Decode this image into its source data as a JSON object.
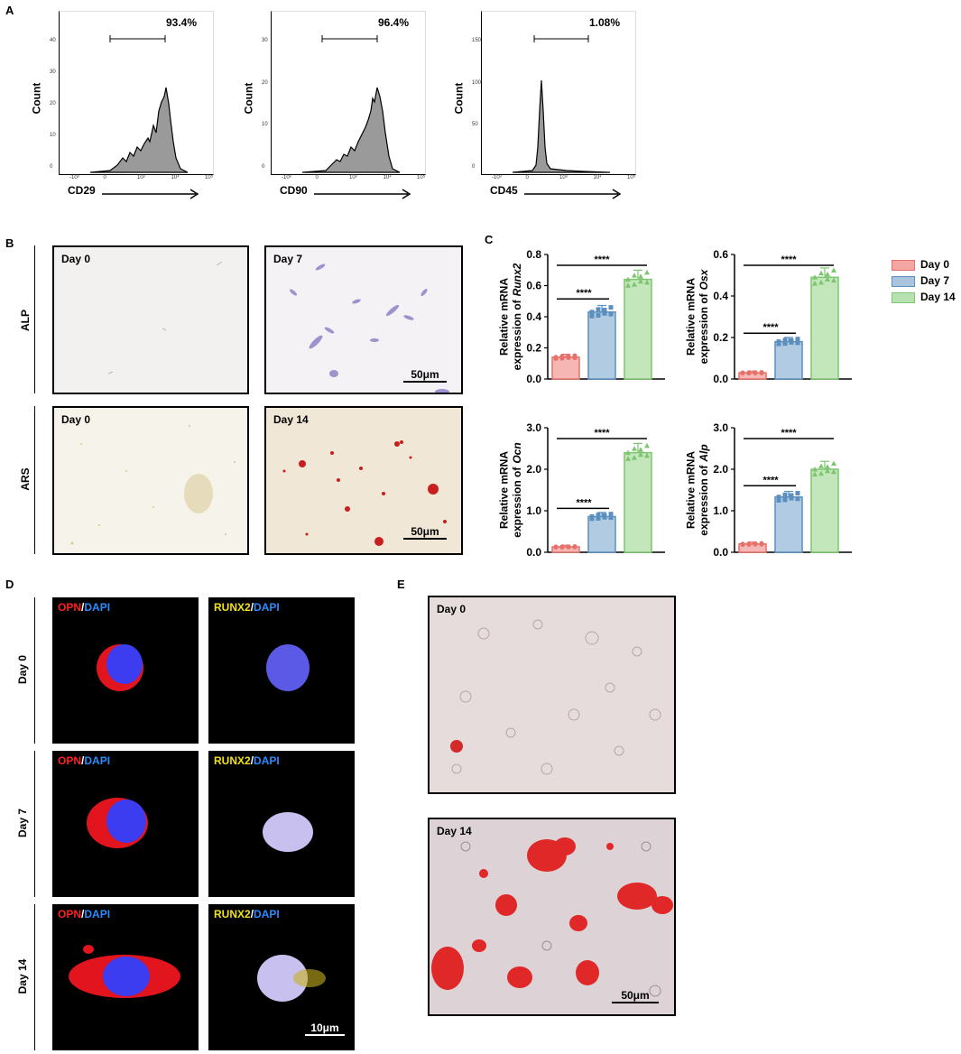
{
  "panel_labels": {
    "a": "A",
    "b": "B",
    "c": "C",
    "d": "D",
    "e": "E"
  },
  "facs": [
    {
      "marker": "CD29",
      "percent": "93.4%",
      "ylabel": "Count",
      "yticks": [
        "0",
        "10",
        "20",
        "30",
        "40"
      ],
      "xticks": [
        "-10³",
        "0",
        "10³",
        "10⁴",
        "10⁵"
      ]
    },
    {
      "marker": "CD90",
      "percent": "96.4%",
      "ylabel": "Count",
      "yticks": [
        "0",
        "10",
        "20",
        "30"
      ],
      "xticks": [
        "-10³",
        "0",
        "10³",
        "10⁴",
        "10⁵"
      ]
    },
    {
      "marker": "CD45",
      "percent": "1.08%",
      "ylabel": "Count",
      "yticks": [
        "0",
        "50",
        "100",
        "150"
      ],
      "xticks": [
        "-10³",
        "0",
        "10³",
        "10⁴",
        "10⁵"
      ]
    }
  ],
  "panel_b": {
    "rows": [
      "ALP",
      "ARS"
    ],
    "images": [
      {
        "label": "Day 0"
      },
      {
        "label": "Day 7",
        "scale": "50μm"
      },
      {
        "label": "Day 0"
      },
      {
        "label": "Day 14",
        "scale": "50μm"
      }
    ]
  },
  "panel_c_legend": [
    {
      "label": "Day 0",
      "color": "#f4a6a3"
    },
    {
      "label": "Day 7",
      "color": "#a9c4dc"
    },
    {
      "label": "Day 14",
      "color": "#b8e0b0"
    }
  ],
  "panel_c_sig": "****",
  "chart_data": [
    {
      "type": "bar",
      "ylabel_line1": "Relative mRNA",
      "ylabel_line2": "expression of",
      "gene": "Runx2",
      "categories": [
        "Day 0",
        "Day 7",
        "Day 14"
      ],
      "values": [
        0.14,
        0.43,
        0.64
      ],
      "ylim": [
        0,
        0.8
      ],
      "yticks": [
        "0.0",
        "0.2",
        "0.4",
        "0.6",
        "0.8"
      ]
    },
    {
      "type": "bar",
      "ylabel_line1": "Relative mRNA",
      "ylabel_line2": "expression of",
      "gene": "Osx",
      "categories": [
        "Day 0",
        "Day 7",
        "Day 14"
      ],
      "values": [
        0.03,
        0.18,
        0.49
      ],
      "ylim": [
        0,
        0.6
      ],
      "yticks": [
        "0.0",
        "0.2",
        "0.4",
        "0.6"
      ]
    },
    {
      "type": "bar",
      "ylabel_line1": "Relative mRNA",
      "ylabel_line2": "expression of",
      "gene": "Ocn",
      "categories": [
        "Day 0",
        "Day 7",
        "Day 14"
      ],
      "values": [
        0.13,
        0.86,
        2.4
      ],
      "ylim": [
        0,
        3.0
      ],
      "yticks": [
        "0.0",
        "1.0",
        "2.0",
        "3.0"
      ]
    },
    {
      "type": "bar",
      "ylabel_line1": "Relative mRNA",
      "ylabel_line2": "expression of",
      "gene": "Alp",
      "categories": [
        "Day 0",
        "Day 7",
        "Day 14"
      ],
      "values": [
        0.2,
        1.33,
        2.0
      ],
      "ylim": [
        0,
        3.0
      ],
      "yticks": [
        "0.0",
        "1.0",
        "2.0",
        "3.0"
      ]
    }
  ],
  "panel_d": {
    "rows": [
      "Day 0",
      "Day 7",
      "Day 14"
    ],
    "stain1": {
      "a": "OPN",
      "sep": "/",
      "b": "DAPI"
    },
    "stain2": {
      "a": "RUNX2",
      "sep": "/",
      "b": "DAPI"
    },
    "scale": "10μm"
  },
  "panel_e": {
    "images": [
      {
        "label": "Day 0"
      },
      {
        "label": "Day 14",
        "scale": "50μm"
      }
    ]
  }
}
